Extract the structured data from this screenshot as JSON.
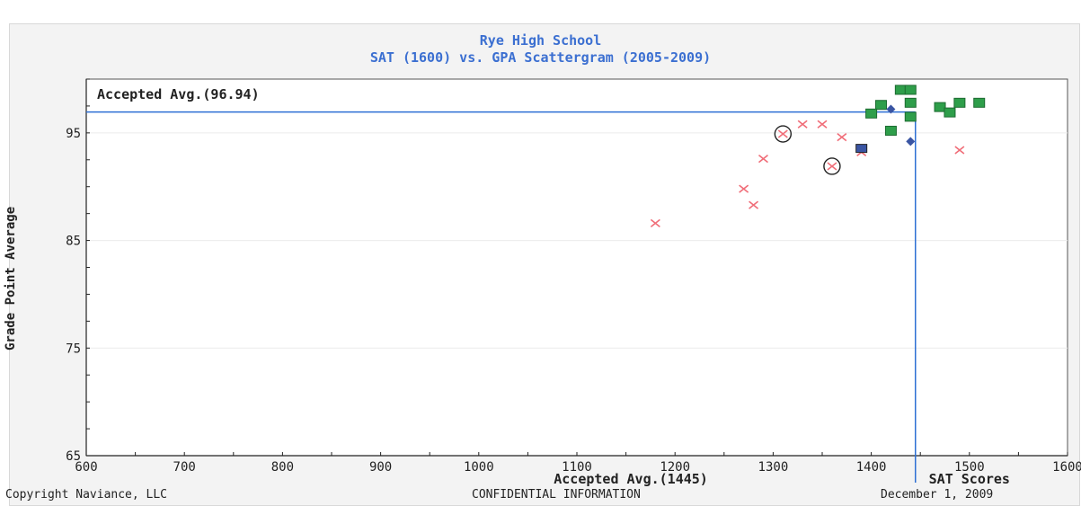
{
  "header": {
    "title": "Rye High School",
    "subtitle": "SAT (1600) vs. GPA Scattergram (2005-2009)"
  },
  "footer": {
    "left": "Copyright Naviance, LLC",
    "center": "CONFIDENTIAL INFORMATION",
    "right": "December 1, 2009"
  },
  "chart_data": {
    "type": "scatter",
    "title": "Rye High School",
    "subtitle": "SAT (1600) vs. GPA Scattergram (2005-2009)",
    "xlabel": "SAT Scores",
    "ylabel": "Grade Point Average",
    "xlim": [
      600,
      1600
    ],
    "ylim": [
      65,
      100
    ],
    "xticks": [
      600,
      700,
      800,
      900,
      1000,
      1100,
      1200,
      1300,
      1400,
      1500,
      1600
    ],
    "yticks": [
      65,
      75,
      85,
      95
    ],
    "grid": false,
    "accepted_avg": {
      "x": 1445,
      "y": 96.94,
      "x_label": "Accepted Avg.(1445)",
      "y_label": "Accepted Avg.(96.94)"
    },
    "colors": {
      "accepted": "#2e9e4a",
      "denied": "#f06d78",
      "waitlisted_accepted": "#3a55a3",
      "waitlisted_denied": "#222222",
      "avg_line": "#2d6fd4",
      "diamond": "#3a55a3"
    },
    "series": [
      {
        "marker": "green-square",
        "points": [
          [
            1410,
            97.6
          ],
          [
            1430,
            99.0
          ],
          [
            1440,
            99.0
          ],
          [
            1440,
            97.8
          ],
          [
            1400,
            96.8
          ],
          [
            1420,
            95.2
          ],
          [
            1440,
            96.5
          ],
          [
            1470,
            97.4
          ],
          [
            1480,
            96.9
          ],
          [
            1490,
            97.8
          ],
          [
            1510,
            97.8
          ]
        ]
      },
      {
        "marker": "red-x",
        "points": [
          [
            1180,
            86.6
          ],
          [
            1270,
            89.8
          ],
          [
            1280,
            88.3
          ],
          [
            1290,
            92.6
          ],
          [
            1310,
            94.9
          ],
          [
            1330,
            95.8
          ],
          [
            1350,
            95.8
          ],
          [
            1360,
            91.9
          ],
          [
            1370,
            94.6
          ],
          [
            1390,
            93.2
          ],
          [
            1490,
            93.4
          ]
        ]
      },
      {
        "marker": "circled-x",
        "points": [
          [
            1310,
            94.9
          ],
          [
            1360,
            91.9
          ]
        ]
      },
      {
        "marker": "blue-square",
        "points": [
          [
            1390,
            93.6
          ]
        ]
      },
      {
        "marker": "blue-diamond",
        "points": [
          [
            1420,
            97.2
          ],
          [
            1440,
            94.2
          ]
        ]
      }
    ]
  }
}
